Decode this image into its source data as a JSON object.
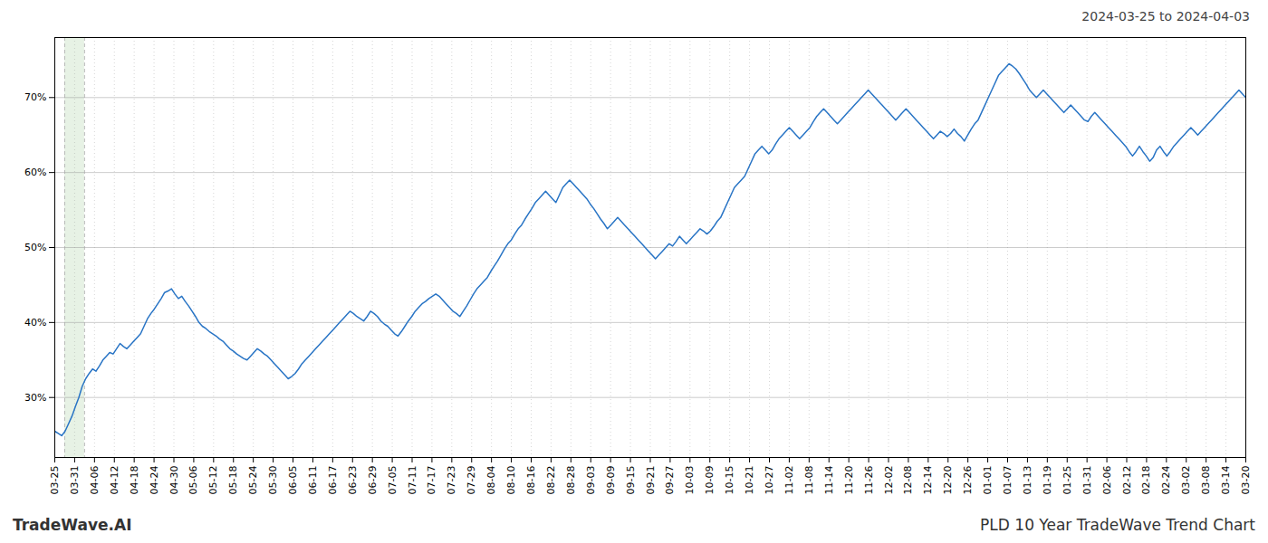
{
  "chart_data": {
    "type": "line",
    "title": "PLD 10 Year TradeWave Trend Chart",
    "subtitle": "2024-03-25 to 2024-04-03",
    "caption": "TradeWave.AI",
    "color": "#2874c5",
    "grid": true,
    "shade": {
      "x": [
        2.8917,
        8.675
      ],
      "color": "#d4e8d0"
    },
    "xlim": [
      0,
      347
    ],
    "xticks": [
      {
        "value": 0,
        "label": "03-25"
      },
      {
        "value": 5.7833,
        "label": "03-31"
      },
      {
        "value": 11.5667,
        "label": "04-06"
      },
      {
        "value": 17.35,
        "label": "04-12"
      },
      {
        "value": 23.1333,
        "label": "04-18"
      },
      {
        "value": 28.9167,
        "label": "04-24"
      },
      {
        "value": 34.7,
        "label": "04-30"
      },
      {
        "value": 40.4833,
        "label": "05-06"
      },
      {
        "value": 46.2667,
        "label": "05-12"
      },
      {
        "value": 52.05,
        "label": "05-18"
      },
      {
        "value": 57.8333,
        "label": "05-24"
      },
      {
        "value": 63.6167,
        "label": "05-30"
      },
      {
        "value": 69.4,
        "label": "06-05"
      },
      {
        "value": 75.1833,
        "label": "06-11"
      },
      {
        "value": 80.9667,
        "label": "06-17"
      },
      {
        "value": 86.75,
        "label": "06-23"
      },
      {
        "value": 92.5333,
        "label": "06-29"
      },
      {
        "value": 98.3167,
        "label": "07-05"
      },
      {
        "value": 104.1,
        "label": "07-11"
      },
      {
        "value": 109.8833,
        "label": "07-17"
      },
      {
        "value": 115.6667,
        "label": "07-23"
      },
      {
        "value": 121.45,
        "label": "07-29"
      },
      {
        "value": 127.2333,
        "label": "08-04"
      },
      {
        "value": 133.0167,
        "label": "08-10"
      },
      {
        "value": 138.8,
        "label": "08-16"
      },
      {
        "value": 144.5833,
        "label": "08-22"
      },
      {
        "value": 150.3667,
        "label": "08-28"
      },
      {
        "value": 156.15,
        "label": "09-03"
      },
      {
        "value": 161.9333,
        "label": "09-09"
      },
      {
        "value": 167.7167,
        "label": "09-15"
      },
      {
        "value": 173.5,
        "label": "09-21"
      },
      {
        "value": 179.2833,
        "label": "09-27"
      },
      {
        "value": 185.0667,
        "label": "10-03"
      },
      {
        "value": 190.85,
        "label": "10-09"
      },
      {
        "value": 196.6333,
        "label": "10-15"
      },
      {
        "value": 202.4167,
        "label": "10-21"
      },
      {
        "value": 208.2,
        "label": "10-27"
      },
      {
        "value": 213.9833,
        "label": "11-02"
      },
      {
        "value": 219.7667,
        "label": "11-08"
      },
      {
        "value": 225.55,
        "label": "11-14"
      },
      {
        "value": 231.3333,
        "label": "11-20"
      },
      {
        "value": 237.1167,
        "label": "11-26"
      },
      {
        "value": 242.9,
        "label": "12-02"
      },
      {
        "value": 248.6833,
        "label": "12-08"
      },
      {
        "value": 254.4667,
        "label": "12-14"
      },
      {
        "value": 260.25,
        "label": "12-20"
      },
      {
        "value": 266.0333,
        "label": "12-26"
      },
      {
        "value": 271.8167,
        "label": "01-01"
      },
      {
        "value": 277.6,
        "label": "01-07"
      },
      {
        "value": 283.3833,
        "label": "01-13"
      },
      {
        "value": 289.1667,
        "label": "01-19"
      },
      {
        "value": 294.95,
        "label": "01-25"
      },
      {
        "value": 300.7333,
        "label": "01-31"
      },
      {
        "value": 306.5167,
        "label": "02-06"
      },
      {
        "value": 312.3,
        "label": "02-12"
      },
      {
        "value": 318.0833,
        "label": "02-18"
      },
      {
        "value": 323.8667,
        "label": "02-24"
      },
      {
        "value": 329.65,
        "label": "03-02"
      },
      {
        "value": 335.4333,
        "label": "03-08"
      },
      {
        "value": 341.2167,
        "label": "03-14"
      },
      {
        "value": 347,
        "label": "03-20"
      }
    ],
    "ylim": [
      22,
      78
    ],
    "yticks": [
      {
        "value": 30,
        "label": "30%"
      },
      {
        "value": 40,
        "label": "40%"
      },
      {
        "value": 50,
        "label": "50%"
      },
      {
        "value": 60,
        "label": "60%"
      },
      {
        "value": 70,
        "label": "70%"
      }
    ],
    "values": [
      25.5,
      25.2,
      24.9,
      25.5,
      26.5,
      27.5,
      28.8,
      30.0,
      31.5,
      32.5,
      33.2,
      33.8,
      33.5,
      34.2,
      35.0,
      35.5,
      36.0,
      35.8,
      36.5,
      37.2,
      36.8,
      36.5,
      37.0,
      37.5,
      38.0,
      38.5,
      39.5,
      40.5,
      41.2,
      41.8,
      42.5,
      43.2,
      44.0,
      44.2,
      44.5,
      43.8,
      43.2,
      43.5,
      42.8,
      42.2,
      41.5,
      40.8,
      40.0,
      39.5,
      39.2,
      38.8,
      38.5,
      38.2,
      37.8,
      37.5,
      37.0,
      36.5,
      36.2,
      35.8,
      35.5,
      35.2,
      35.0,
      35.5,
      36.0,
      36.5,
      36.2,
      35.8,
      35.5,
      35.0,
      34.5,
      34.0,
      33.5,
      33.0,
      32.5,
      32.8,
      33.2,
      33.8,
      34.5,
      35.0,
      35.5,
      36.0,
      36.5,
      37.0,
      37.5,
      38.0,
      38.5,
      39.0,
      39.5,
      40.0,
      40.5,
      41.0,
      41.5,
      41.2,
      40.8,
      40.5,
      40.2,
      40.8,
      41.5,
      41.2,
      40.8,
      40.2,
      39.8,
      39.5,
      39.0,
      38.5,
      38.2,
      38.8,
      39.5,
      40.2,
      40.8,
      41.5,
      42.0,
      42.5,
      42.8,
      43.2,
      43.5,
      43.8,
      43.5,
      43.0,
      42.5,
      42.0,
      41.5,
      41.2,
      40.8,
      41.5,
      42.2,
      43.0,
      43.8,
      44.5,
      45.0,
      45.5,
      46.0,
      46.8,
      47.5,
      48.2,
      49.0,
      49.8,
      50.5,
      51.0,
      51.8,
      52.5,
      53.0,
      53.8,
      54.5,
      55.2,
      56.0,
      56.5,
      57.0,
      57.5,
      57.0,
      56.5,
      56.0,
      57.0,
      58.0,
      58.5,
      59.0,
      58.5,
      58.0,
      57.5,
      57.0,
      56.5,
      55.8,
      55.2,
      54.5,
      53.8,
      53.2,
      52.5,
      53.0,
      53.5,
      54.0,
      53.5,
      53.0,
      52.5,
      52.0,
      51.5,
      51.0,
      50.5,
      50.0,
      49.5,
      49.0,
      48.5,
      49.0,
      49.5,
      50.0,
      50.5,
      50.2,
      50.8,
      51.5,
      51.0,
      50.5,
      51.0,
      51.5,
      52.0,
      52.5,
      52.2,
      51.8,
      52.2,
      52.8,
      53.5,
      54.0,
      55.0,
      56.0,
      57.0,
      58.0,
      58.5,
      59.0,
      59.5,
      60.5,
      61.5,
      62.5,
      63.0,
      63.5,
      63.0,
      62.5,
      63.0,
      63.8,
      64.5,
      65.0,
      65.5,
      66.0,
      65.5,
      65.0,
      64.5,
      65.0,
      65.5,
      66.0,
      66.8,
      67.5,
      68.0,
      68.5,
      68.0,
      67.5,
      67.0,
      66.5,
      67.0,
      67.5,
      68.0,
      68.5,
      69.0,
      69.5,
      70.0,
      70.5,
      71.0,
      70.5,
      70.0,
      69.5,
      69.0,
      68.5,
      68.0,
      67.5,
      67.0,
      67.5,
      68.0,
      68.5,
      68.0,
      67.5,
      67.0,
      66.5,
      66.0,
      65.5,
      65.0,
      64.5,
      65.0,
      65.5,
      65.2,
      64.8,
      65.2,
      65.8,
      65.2,
      64.8,
      64.2,
      65.0,
      65.8,
      66.5,
      67.0,
      68.0,
      69.0,
      70.0,
      71.0,
      72.0,
      73.0,
      73.5,
      74.0,
      74.5,
      74.2,
      73.8,
      73.2,
      72.5,
      71.8,
      71.0,
      70.5,
      70.0,
      70.5,
      71.0,
      70.5,
      70.0,
      69.5,
      69.0,
      68.5,
      68.0,
      68.5,
      69.0,
      68.5,
      68.0,
      67.5,
      67.0,
      66.8,
      67.5,
      68.0,
      67.5,
      67.0,
      66.5,
      66.0,
      65.5,
      65.0,
      64.5,
      64.0,
      63.5,
      62.8,
      62.2,
      62.8,
      63.5,
      62.8,
      62.2,
      61.5,
      62.0,
      63.0,
      63.5,
      62.8,
      62.2,
      62.8,
      63.5,
      64.0,
      64.5,
      65.0,
      65.5,
      66.0,
      65.5,
      65.0,
      65.5,
      66.0,
      66.5,
      67.0,
      67.5,
      68.0,
      68.5,
      69.0,
      69.5,
      70.0,
      70.5,
      71.0,
      70.5,
      70.0
    ]
  }
}
